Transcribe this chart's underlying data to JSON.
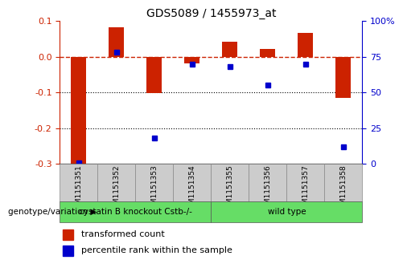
{
  "title": "GDS5089 / 1455973_at",
  "samples": [
    "GSM1151351",
    "GSM1151352",
    "GSM1151353",
    "GSM1151354",
    "GSM1151355",
    "GSM1151356",
    "GSM1151357",
    "GSM1151358"
  ],
  "transformed_count": [
    -0.305,
    0.083,
    -0.102,
    -0.018,
    0.043,
    0.022,
    0.068,
    -0.115
  ],
  "percentile_rank": [
    0.5,
    78,
    18,
    70,
    68,
    55,
    70,
    12
  ],
  "ylim_left": [
    -0.3,
    0.1
  ],
  "ylim_right": [
    0,
    100
  ],
  "yticks_left": [
    -0.3,
    -0.2,
    -0.1,
    0.0,
    0.1
  ],
  "yticks_right": [
    0,
    25,
    50,
    75,
    100
  ],
  "group1_label": "cystatin B knockout Cstb-/-",
  "group1_indices": [
    0,
    1,
    2,
    3
  ],
  "group2_label": "wild type",
  "group2_indices": [
    4,
    5,
    6,
    7
  ],
  "group_row_label": "genotype/variation",
  "bar_color": "#cc2200",
  "dot_color": "#0000cc",
  "group_color": "#66dd66",
  "sample_cell_color": "#cccccc",
  "legend_bar_label": "transformed count",
  "legend_dot_label": "percentile rank within the sample",
  "zeroline_color": "#cc2200",
  "bar_width": 0.4,
  "dot_size": 5
}
